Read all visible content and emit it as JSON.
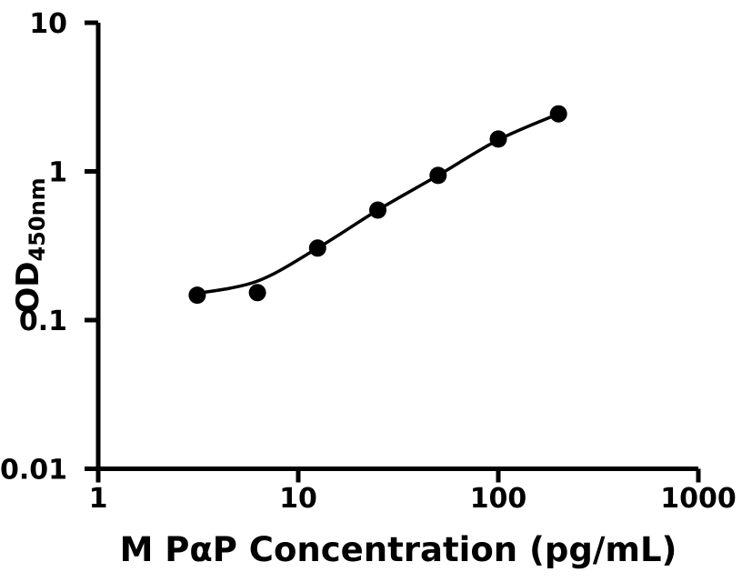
{
  "chart_data": {
    "type": "scatter",
    "title": "",
    "xlabel": "M PαP Concentration (pg/mL)",
    "ylabel_main": "OD",
    "ylabel_sub": "450nm",
    "x_scale": "log",
    "y_scale": "log",
    "xlim": [
      1,
      1000
    ],
    "ylim": [
      0.01,
      10
    ],
    "x_ticks": [
      1,
      10,
      100,
      1000
    ],
    "y_ticks": [
      10,
      1,
      0.1,
      0.01
    ],
    "grid": false,
    "legend_position": "none",
    "axis_color": "#000000",
    "background_color": "#ffffff",
    "series": [
      {
        "name": "fitted-curve",
        "type": "line",
        "color": "#000000",
        "x": [
          3.125,
          6.25,
          12.5,
          25,
          50,
          100,
          200
        ],
        "y": [
          0.151,
          0.183,
          0.305,
          0.55,
          0.94,
          1.63,
          2.44
        ]
      },
      {
        "name": "standard-points",
        "type": "scatter",
        "marker": "circle",
        "color": "#000000",
        "x": [
          3.125,
          6.25,
          12.5,
          25,
          50,
          100,
          200
        ],
        "y": [
          0.147,
          0.153,
          0.305,
          0.55,
          0.94,
          1.65,
          2.44
        ]
      }
    ]
  }
}
